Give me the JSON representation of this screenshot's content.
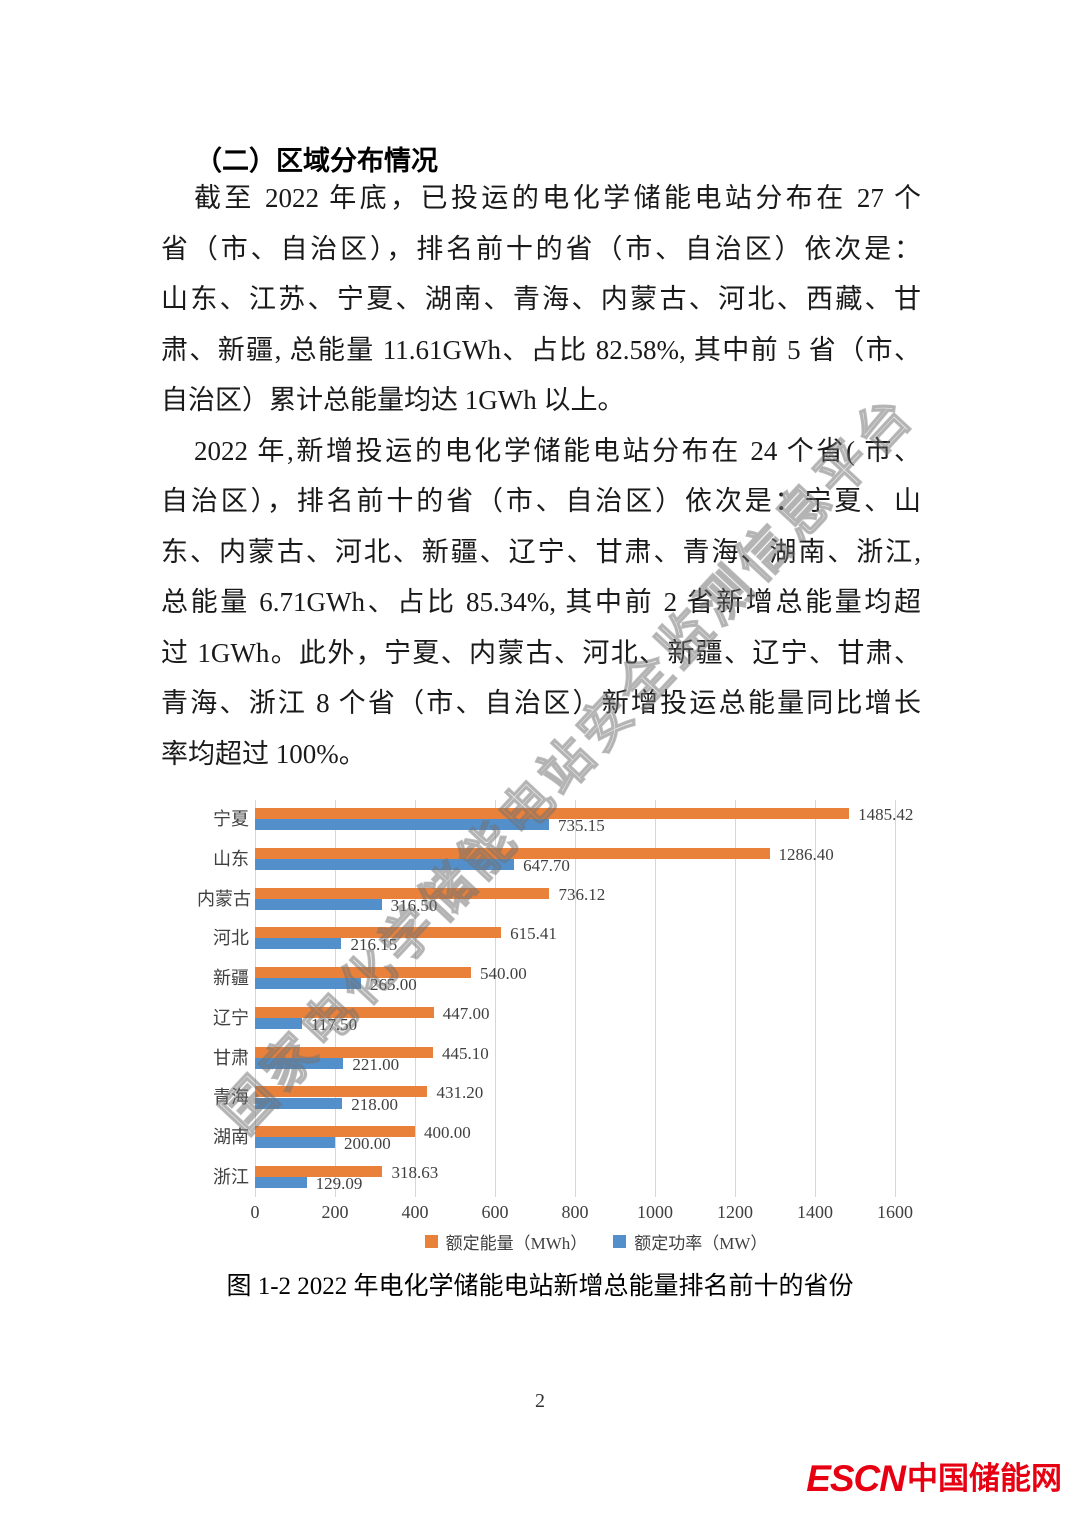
{
  "doc": {
    "heading": "（二）区域分布情况",
    "paragraphs": [
      {
        "lines": [
          "截至 2022 年底，已投运的电化学储能电站分布在 27 个",
          "省（市、自治区），排名前十的省（市、自治区）依次是：",
          "山东、江苏、宁夏、湖南、青海、内蒙古、河北、西藏、甘",
          "肃、新疆, 总能量 11.61GWh、占比 82.58%, 其中前 5 省（市、",
          "自治区）累计总能量均达 1GWh 以上。"
        ]
      },
      {
        "lines": [
          "2022 年,新增投运的电化学储能电站分布在 24 个省( 市、",
          "自治区），排名前十的省（市、自治区）依次是：宁夏、山",
          "东、内蒙古、河北、新疆、辽宁、甘肃、青海、湖南、浙江,",
          "总能量 6.71GWh、占比 85.34%, 其中前 2 省新增总能量均超",
          "过 1GWh。此外，宁夏、内蒙古、河北、新疆、辽宁、甘肃、",
          "青海、浙江 8 个省（市、自治区）新增投运总能量同比增长",
          "率均超过 100%。"
        ]
      }
    ],
    "caption": "图 1-2 2022 年电化学储能电站新增总能量排名前十的省份",
    "watermark": "国家电化学储能电站安全监测信息平台",
    "page_number": "2",
    "logo": {
      "escn": "ESCN",
      "cn": "中国储能网",
      "color": "#E60012"
    }
  },
  "chart_data": {
    "type": "bar",
    "orientation": "horizontal",
    "title": "",
    "xlabel": "",
    "ylabel": "",
    "categories": [
      "宁夏",
      "山东",
      "内蒙古",
      "河北",
      "新疆",
      "辽宁",
      "甘肃",
      "青海",
      "湖南",
      "浙江"
    ],
    "series": [
      {
        "name": "额定能量（MWh）",
        "color": "#E9813B",
        "values": [
          1485.42,
          1286.4,
          736.12,
          615.41,
          540.0,
          447.0,
          445.1,
          431.2,
          400.0,
          318.63
        ]
      },
      {
        "name": "额定功率（MW）",
        "color": "#5390CB",
        "values": [
          735.15,
          647.7,
          316.5,
          216.15,
          265.0,
          117.5,
          221.0,
          218.0,
          200.0,
          129.09
        ]
      }
    ],
    "xlim": [
      0,
      1600
    ],
    "x_ticks": [
      0,
      200,
      400,
      600,
      800,
      1000,
      1200,
      1400,
      1600
    ],
    "grid": true,
    "legend_position": "bottom",
    "value_labels": true,
    "grid_color": "#d6d6d6"
  }
}
